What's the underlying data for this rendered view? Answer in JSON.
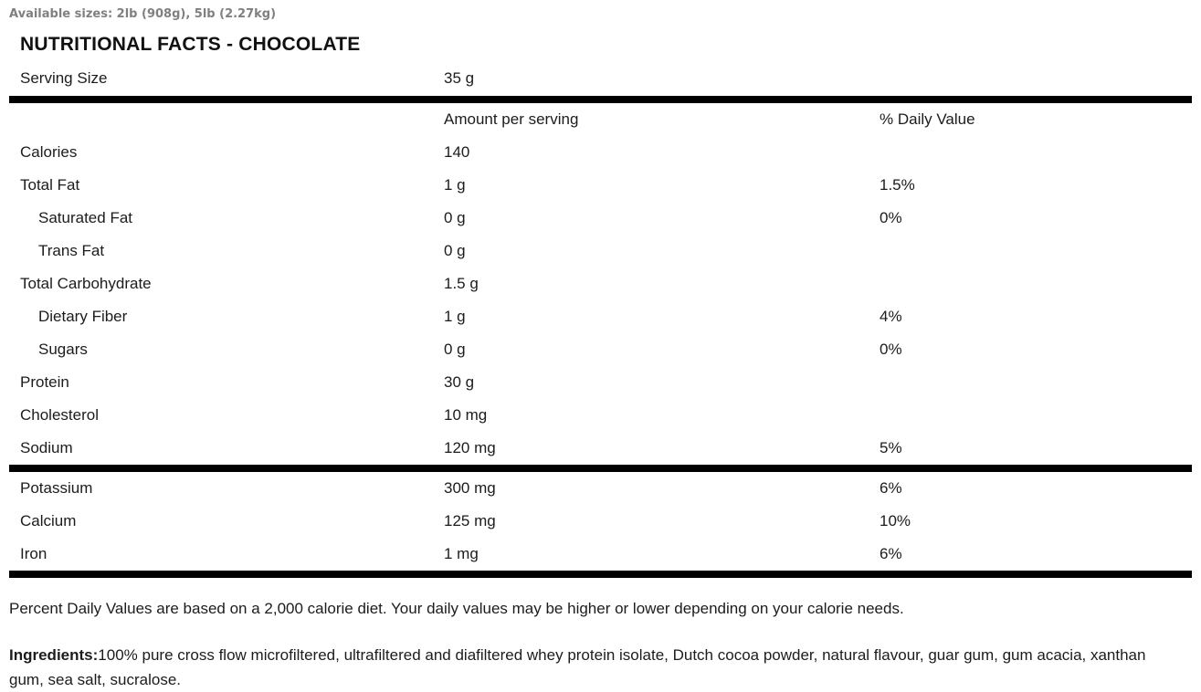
{
  "page": {
    "available_sizes": "Available sizes: 2lb (908g), 5lb (2.27kg)",
    "title": "NUTRITIONAL FACTS - CHOCOLATE"
  },
  "table": {
    "serving": {
      "label": "Serving Size",
      "value": "35 g"
    },
    "columns": {
      "amount": "Amount per serving",
      "daily_value": "% Daily Value"
    },
    "rows": [
      {
        "label": "Calories",
        "amount": "140",
        "dv": "",
        "indent": false
      },
      {
        "label": "Total Fat",
        "amount": "1 g",
        "dv": "1.5%",
        "indent": false
      },
      {
        "label": "Saturated Fat",
        "amount": "0 g",
        "dv": "0%",
        "indent": true
      },
      {
        "label": "Trans Fat",
        "amount": "0 g",
        "dv": "",
        "indent": true
      },
      {
        "label": "Total Carbohydrate",
        "amount": "1.5 g",
        "dv": "",
        "indent": false
      },
      {
        "label": "Dietary Fiber",
        "amount": "1 g",
        "dv": "4%",
        "indent": true
      },
      {
        "label": "Sugars",
        "amount": "0 g",
        "dv": "0%",
        "indent": true
      },
      {
        "label": "Protein",
        "amount": "30 g",
        "dv": "",
        "indent": false
      },
      {
        "label": "Cholesterol",
        "amount": "10 mg",
        "dv": "",
        "indent": false
      },
      {
        "label": "Sodium",
        "amount": "120 mg",
        "dv": "5%",
        "indent": false
      }
    ],
    "minerals": [
      {
        "label": "Potassium",
        "amount": "300 mg",
        "dv": "6%"
      },
      {
        "label": "Calcium",
        "amount": "125 mg",
        "dv": "10%"
      },
      {
        "label": "Iron",
        "amount": "1 mg",
        "dv": "6%"
      }
    ]
  },
  "footer": {
    "daily_values_note": "Percent Daily Values are based on a 2,000 calorie diet. Your daily values may be higher or lower depending on your calorie needs.",
    "ingredients_label": "Ingredients:",
    "ingredients_text": "100% pure cross flow microfiltered, ultrafiltered and diafiltered whey protein isolate, Dutch cocoa powder, natural flavour, guar gum, gum acacia, xanthan gum, sea salt, sucralose."
  },
  "colors": {
    "text": "#1c1c1c",
    "muted_gray": "#808080",
    "separator_bar": "#000000",
    "background": "#ffffff"
  }
}
